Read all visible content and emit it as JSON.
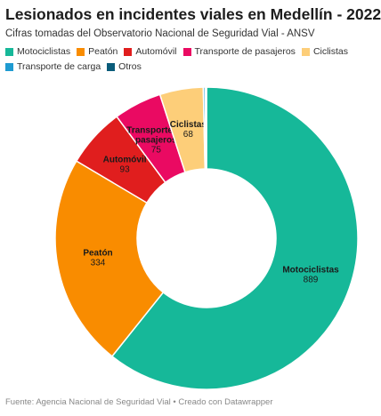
{
  "chart_data": {
    "type": "pie",
    "title": "Lesionados en incidentes viales en Medellín - 2022",
    "subtitle": "Cifras tomadas del Observatorio Nacional de Seguridad Vial - ANSV",
    "donut": true,
    "legend_position": "top-left",
    "slices": [
      {
        "name": "Motociclistas",
        "value": 889,
        "color": "#16b899",
        "label": [
          "Motociclistas"
        ],
        "show_label": true
      },
      {
        "name": "Peatón",
        "value": 334,
        "color": "#f98c00",
        "label": [
          "Peatón"
        ],
        "show_label": true
      },
      {
        "name": "Automóvil",
        "value": 93,
        "color": "#e01e1e",
        "label": [
          "Automóvil"
        ],
        "show_label": true
      },
      {
        "name": "Transporte de pasajeros",
        "value": 75,
        "color": "#ea0a62",
        "label": [
          "Transporte de",
          "pasajeros"
        ],
        "show_label": true
      },
      {
        "name": "Ciclistas",
        "value": 68,
        "color": "#fdce79",
        "label": [
          "Ciclistas"
        ],
        "show_label": true
      },
      {
        "name": "Transporte de carga",
        "value": 3,
        "color": "#1f9bd1",
        "label": [
          "Transporte de carga"
        ],
        "show_label": false
      },
      {
        "name": "Otros",
        "value": 2,
        "color": "#0a5c7a",
        "label": [
          "Otros"
        ],
        "show_label": false
      }
    ],
    "footer": "Fuente: Agencia Nacional de Seguridad Vial • Creado con Datawrapper"
  }
}
